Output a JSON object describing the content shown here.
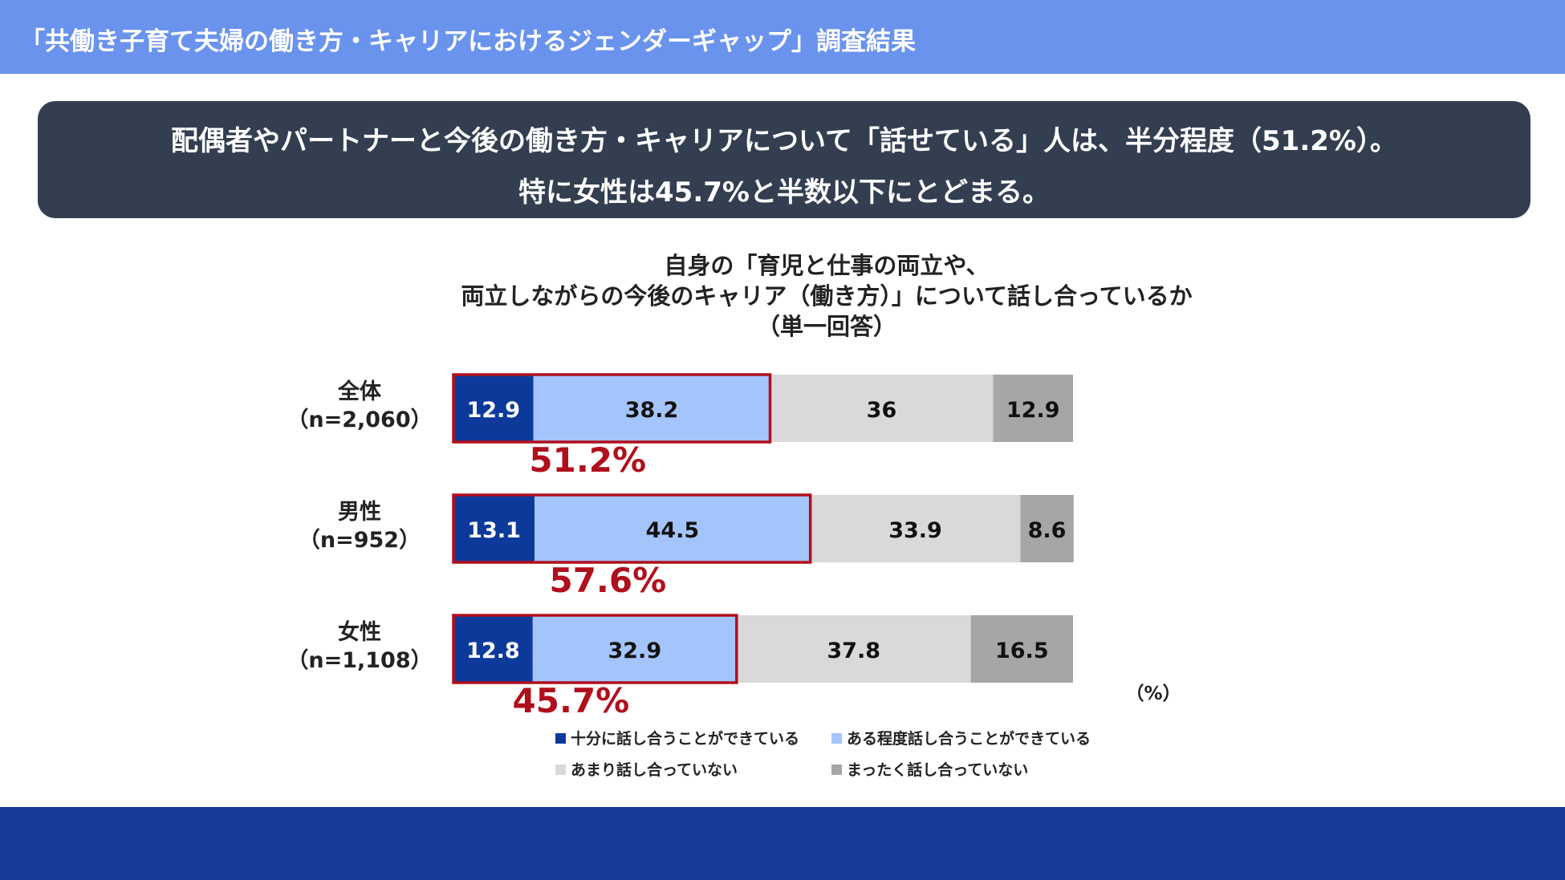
{
  "header": {
    "title": "「共働き子育て夫婦の働き方・キャリアにおけるジェンダーギャップ」調査結果"
  },
  "summary": {
    "line1": "配偶者やパートナーと今後の働き方・キャリアについて「話せている」人は、半分程度（51.2%）。",
    "line2": "特に女性は45.7%と半数以下にとどまる。"
  },
  "chart_title": {
    "line1": "自身の「育児と仕事の両立や、",
    "line2": "両立しながらの今後のキャリア（働き方）」について話し合っているか",
    "line3": "（単一回答）"
  },
  "chart_data": {
    "type": "bar",
    "orientation": "horizontal",
    "stacked": true,
    "unit_label": "（%）",
    "categories": [
      {
        "name": "全体",
        "n": "（n=2,060）",
        "highlight": "51.2%"
      },
      {
        "name": "男性",
        "n": "（n=952）",
        "highlight": "57.6%"
      },
      {
        "name": "女性",
        "n": "（n=1,108）",
        "highlight": "45.7%"
      }
    ],
    "series": [
      {
        "name": "十分に話し合うことができている",
        "color": "#0d3a9a",
        "text_color": "#ffffff",
        "values": [
          12.9,
          13.1,
          12.8
        ]
      },
      {
        "name": "ある程度話し合うことができている",
        "color": "#a4c4fc",
        "text_color": "#111111",
        "values": [
          38.2,
          44.5,
          32.9
        ]
      },
      {
        "name": "あまり話し合っていない",
        "color": "#d9d9d9",
        "text_color": "#111111",
        "values": [
          36.0,
          33.9,
          37.8
        ]
      },
      {
        "name": "まったく話し合っていない",
        "color": "#a6a6a6",
        "text_color": "#111111",
        "values": [
          12.9,
          8.6,
          16.5
        ]
      }
    ],
    "highlight_color": "#b00f1c",
    "xlim": [
      0,
      100
    ]
  }
}
